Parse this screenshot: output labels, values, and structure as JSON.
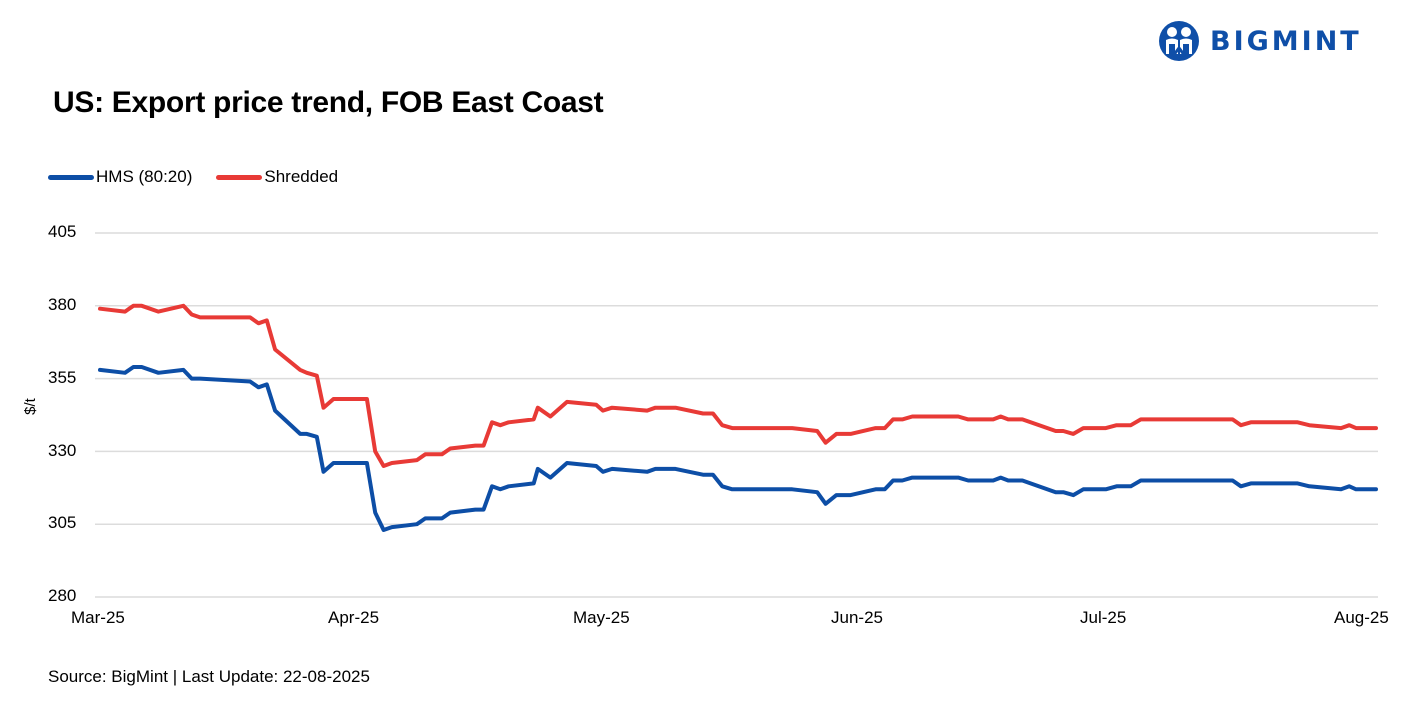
{
  "brand": {
    "name": "BIGMINT",
    "logo_icon": "bigmint-people-logo",
    "color": "#0f4fa8"
  },
  "chart_data": {
    "type": "line",
    "title": "US: Export price trend, FOB East Coast",
    "xlabel": "",
    "ylabel": "$/t",
    "ylim": [
      280,
      405
    ],
    "yticks": [
      405,
      380,
      355,
      330,
      305,
      280
    ],
    "xticks": [
      "Mar-25",
      "Apr-25",
      "May-25",
      "Jun-25",
      "Jul-25",
      "Aug-25"
    ],
    "x_unit": "days since 1-Mar-2025 (x-axis spans 0–153)",
    "grid": true,
    "legend_position": "top-left",
    "series": [
      {
        "name": "HMS (80:20)",
        "color": "#0d4ea6",
        "points": [
          [
            0,
            358
          ],
          [
            3,
            357
          ],
          [
            4,
            359
          ],
          [
            5,
            359
          ],
          [
            7,
            357
          ],
          [
            10,
            358
          ],
          [
            11,
            355
          ],
          [
            12,
            355
          ],
          [
            18,
            354
          ],
          [
            19,
            352
          ],
          [
            20,
            353
          ],
          [
            21,
            344
          ],
          [
            24,
            336
          ],
          [
            24.8,
            336
          ],
          [
            26,
            335
          ],
          [
            26.8,
            323
          ],
          [
            28,
            326
          ],
          [
            32,
            326
          ],
          [
            33,
            309
          ],
          [
            34,
            303
          ],
          [
            35,
            304
          ],
          [
            38,
            305
          ],
          [
            39,
            307
          ],
          [
            41,
            307
          ],
          [
            42,
            309
          ],
          [
            45,
            310
          ],
          [
            46,
            310
          ],
          [
            47,
            318
          ],
          [
            48,
            317
          ],
          [
            49,
            318
          ],
          [
            52,
            319
          ],
          [
            52.5,
            324
          ],
          [
            54,
            321
          ],
          [
            56,
            326
          ],
          [
            59.5,
            325
          ],
          [
            60.3,
            323
          ],
          [
            61.4,
            324
          ],
          [
            65.6,
            323
          ],
          [
            66.6,
            324
          ],
          [
            69,
            324
          ],
          [
            72.3,
            322
          ],
          [
            73.5,
            322
          ],
          [
            74.6,
            318
          ],
          [
            75.8,
            317
          ],
          [
            83,
            317
          ],
          [
            86,
            316
          ],
          [
            87,
            312
          ],
          [
            88.3,
            315
          ],
          [
            90,
            315
          ],
          [
            93,
            317
          ],
          [
            94.1,
            317
          ],
          [
            95.1,
            320
          ],
          [
            96.2,
            320
          ],
          [
            97.4,
            321
          ],
          [
            102.9,
            321
          ],
          [
            104.1,
            320
          ],
          [
            107.1,
            320
          ],
          [
            108,
            321
          ],
          [
            108.9,
            320
          ],
          [
            110.6,
            320
          ],
          [
            114.6,
            316
          ],
          [
            115.5,
            316
          ],
          [
            116.7,
            315
          ],
          [
            117.9,
            317
          ],
          [
            120.6,
            317
          ],
          [
            121.9,
            318
          ],
          [
            123.6,
            318
          ],
          [
            124.8,
            320
          ],
          [
            135.8,
            320
          ],
          [
            136.8,
            318
          ],
          [
            138,
            319
          ],
          [
            143.6,
            319
          ],
          [
            145,
            318
          ],
          [
            148.8,
            317
          ],
          [
            149.8,
            318
          ],
          [
            150.6,
            317
          ],
          [
            153,
            317
          ]
        ]
      },
      {
        "name": "Shredded",
        "color": "#e83a36",
        "points": [
          [
            0,
            379
          ],
          [
            3,
            378
          ],
          [
            4,
            380
          ],
          [
            5,
            380
          ],
          [
            7,
            378
          ],
          [
            10,
            380
          ],
          [
            11,
            377
          ],
          [
            12,
            376
          ],
          [
            18,
            376
          ],
          [
            19,
            374
          ],
          [
            20,
            375
          ],
          [
            21,
            365
          ],
          [
            24,
            358
          ],
          [
            24.8,
            357
          ],
          [
            26,
            356
          ],
          [
            26.8,
            345
          ],
          [
            28,
            348
          ],
          [
            32,
            348
          ],
          [
            33,
            330
          ],
          [
            34,
            325
          ],
          [
            35,
            326
          ],
          [
            38,
            327
          ],
          [
            39,
            329
          ],
          [
            41,
            329
          ],
          [
            42,
            331
          ],
          [
            45,
            332
          ],
          [
            46,
            332
          ],
          [
            47,
            340
          ],
          [
            48,
            339
          ],
          [
            49,
            340
          ],
          [
            52,
            341
          ],
          [
            52.5,
            345
          ],
          [
            54,
            342
          ],
          [
            56,
            347
          ],
          [
            59.5,
            346
          ],
          [
            60.3,
            344
          ],
          [
            61.4,
            345
          ],
          [
            65.6,
            344
          ],
          [
            66.6,
            345
          ],
          [
            69,
            345
          ],
          [
            72.3,
            343
          ],
          [
            73.5,
            343
          ],
          [
            74.6,
            339
          ],
          [
            75.8,
            338
          ],
          [
            83,
            338
          ],
          [
            86,
            337
          ],
          [
            87,
            333
          ],
          [
            88.3,
            336
          ],
          [
            90,
            336
          ],
          [
            93,
            338
          ],
          [
            94.1,
            338
          ],
          [
            95.1,
            341
          ],
          [
            96.2,
            341
          ],
          [
            97.4,
            342
          ],
          [
            102.9,
            342
          ],
          [
            104.1,
            341
          ],
          [
            107.1,
            341
          ],
          [
            108,
            342
          ],
          [
            108.9,
            341
          ],
          [
            110.6,
            341
          ],
          [
            114.6,
            337
          ],
          [
            115.5,
            337
          ],
          [
            116.7,
            336
          ],
          [
            117.9,
            338
          ],
          [
            120.6,
            338
          ],
          [
            121.9,
            339
          ],
          [
            123.6,
            339
          ],
          [
            124.8,
            341
          ],
          [
            135.8,
            341
          ],
          [
            136.8,
            339
          ],
          [
            138,
            340
          ],
          [
            143.6,
            340
          ],
          [
            145,
            339
          ],
          [
            148.8,
            338
          ],
          [
            149.8,
            339
          ],
          [
            150.6,
            338
          ],
          [
            153,
            338
          ]
        ]
      }
    ]
  },
  "footer": {
    "source": "Source: BigMint | Last Update: 22-08-2025"
  }
}
